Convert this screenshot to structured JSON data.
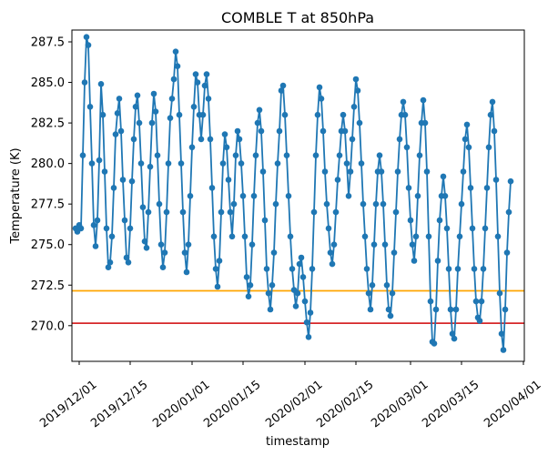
{
  "chart_data": {
    "type": "line",
    "title": "COMBLE T at 850hPa",
    "xlabel": "timestamp",
    "ylabel": "Temperature (K)",
    "grid": false,
    "legend": "none",
    "marker": "o",
    "series_color": "#1f77b4",
    "axes_edge_color": "#000000",
    "ylim": [
      267.8,
      288.23
    ],
    "xlim_days": [
      -1,
      123.25
    ],
    "x_time_base": "2019/11/30",
    "x_step_days": 0.5,
    "y_ticks": [
      {
        "label": "287.5",
        "value": 287.5
      },
      {
        "label": "285.0",
        "value": 285.0
      },
      {
        "label": "282.5",
        "value": 282.5
      },
      {
        "label": "280.0",
        "value": 280.0
      },
      {
        "label": "277.5",
        "value": 277.5
      },
      {
        "label": "275.0",
        "value": 275.0
      },
      {
        "label": "272.5",
        "value": 272.5
      },
      {
        "label": "270.0",
        "value": 270.0
      }
    ],
    "x_ticks": [
      {
        "label": "2019/12/01",
        "day": 1
      },
      {
        "label": "2019/12/15",
        "day": 15
      },
      {
        "label": "2020/01/01",
        "day": 32
      },
      {
        "label": "2020/01/15",
        "day": 46
      },
      {
        "label": "2020/02/01",
        "day": 63
      },
      {
        "label": "2020/02/15",
        "day": 77
      },
      {
        "label": "2020/03/01",
        "day": 92
      },
      {
        "label": "2020/03/15",
        "day": 106
      },
      {
        "label": "2020/04/01",
        "day": 123
      }
    ],
    "reference_lines": [
      {
        "name": "orange-threshold",
        "value": 272.15,
        "color": "#ffa500"
      },
      {
        "name": "red-threshold",
        "value": 270.15,
        "color": "#d62728"
      }
    ],
    "series": {
      "name": "temperature",
      "start_day": 0,
      "step_days": 0.5,
      "values": [
        276.0,
        275.8,
        276.2,
        276.0,
        280.5,
        285.0,
        287.8,
        287.3,
        283.5,
        280.0,
        276.2,
        274.9,
        276.5,
        280.2,
        284.9,
        283.0,
        279.5,
        276.0,
        273.6,
        273.9,
        275.5,
        278.5,
        281.8,
        283.1,
        284.0,
        282.0,
        279.0,
        276.5,
        274.2,
        273.9,
        276.0,
        278.9,
        281.5,
        283.5,
        284.2,
        282.5,
        280.0,
        277.3,
        275.2,
        274.8,
        277.0,
        279.8,
        282.5,
        284.3,
        283.2,
        280.5,
        277.5,
        275.0,
        273.6,
        274.5,
        277.0,
        280.0,
        282.8,
        284.0,
        285.2,
        286.9,
        286.0,
        283.0,
        280.0,
        277.0,
        274.5,
        273.3,
        275.0,
        278.0,
        281.0,
        283.5,
        285.5,
        285.0,
        283.0,
        281.5,
        283.0,
        284.8,
        285.5,
        284.0,
        281.5,
        278.5,
        275.5,
        273.5,
        272.4,
        274.0,
        277.0,
        280.0,
        281.8,
        281.0,
        279.0,
        277.0,
        275.5,
        277.5,
        280.5,
        282.0,
        281.5,
        280.0,
        278.0,
        275.5,
        273.0,
        271.8,
        272.5,
        275.0,
        278.0,
        280.5,
        282.5,
        283.3,
        282.0,
        279.5,
        276.5,
        273.5,
        272.0,
        271.0,
        272.5,
        274.5,
        277.5,
        280.0,
        282.0,
        284.5,
        284.8,
        283.0,
        280.5,
        278.0,
        275.5,
        273.5,
        272.2,
        271.2,
        272.0,
        273.8,
        274.2,
        273.0,
        271.5,
        270.2,
        269.3,
        270.8,
        273.5,
        277.0,
        280.5,
        283.0,
        284.7,
        284.0,
        282.0,
        279.5,
        277.5,
        276.0,
        274.5,
        273.8,
        275.0,
        277.0,
        279.0,
        280.5,
        282.0,
        283.0,
        282.0,
        280.0,
        278.0,
        279.5,
        281.5,
        283.5,
        285.2,
        284.5,
        282.5,
        280.0,
        277.5,
        275.5,
        273.5,
        272.0,
        271.0,
        272.5,
        275.0,
        277.5,
        279.5,
        280.5,
        279.5,
        277.5,
        275.0,
        272.5,
        271.0,
        270.6,
        272.0,
        274.5,
        277.0,
        279.5,
        281.5,
        283.0,
        283.8,
        283.0,
        281.0,
        278.5,
        276.5,
        275.0,
        274.0,
        275.5,
        278.0,
        280.5,
        282.5,
        283.9,
        282.5,
        279.5,
        275.5,
        271.5,
        269.0,
        268.9,
        271.0,
        274.0,
        276.5,
        278.0,
        279.2,
        278.0,
        276.0,
        273.5,
        271.0,
        269.5,
        269.2,
        271.0,
        273.5,
        275.5,
        277.5,
        279.5,
        281.5,
        282.4,
        281.0,
        278.5,
        276.0,
        273.5,
        271.5,
        270.5,
        270.3,
        271.5,
        273.5,
        276.0,
        278.5,
        281.0,
        283.0,
        283.8,
        282.0,
        279.0,
        275.5,
        272.0,
        269.5,
        268.5,
        271.0,
        274.5,
        277.0,
        278.9
      ]
    }
  }
}
